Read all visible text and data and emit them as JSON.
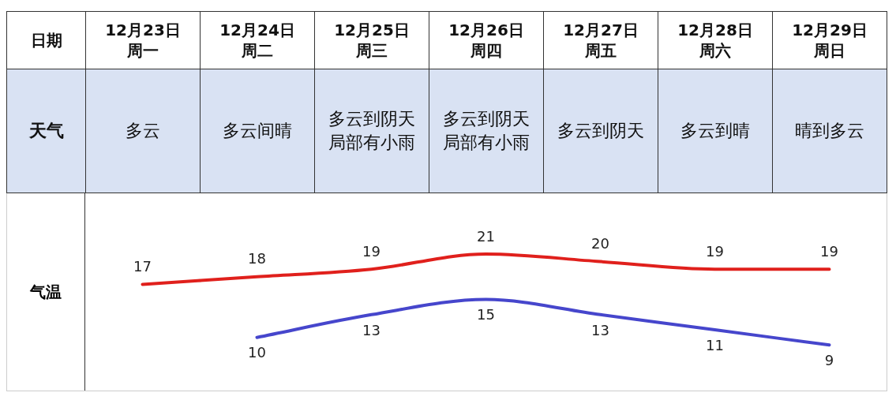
{
  "chart_data": {
    "type": "line",
    "categories": [
      "12月23日周一",
      "12月24日周二",
      "12月25日周三",
      "12月26日周四",
      "12月27日周五",
      "12月28日周六",
      "12月29日周日"
    ],
    "series": [
      {
        "color": "#e0201c",
        "values": [
          17,
          18,
          19,
          21,
          20,
          19,
          19
        ]
      },
      {
        "color": "#4646cc",
        "values": [
          null,
          10,
          13,
          15,
          13,
          11,
          9
        ]
      }
    ],
    "ylim": [
      3,
      29
    ],
    "data_labels": true,
    "legend": false,
    "marker": "none",
    "annotations": [
      "日期",
      "天气",
      "气温",
      "多云",
      "多云间晴",
      "多云到阴天局部有小雨",
      "多云到阴天局部有小雨",
      "多云到阴天",
      "多云到晴",
      "晴到多云"
    ]
  }
}
